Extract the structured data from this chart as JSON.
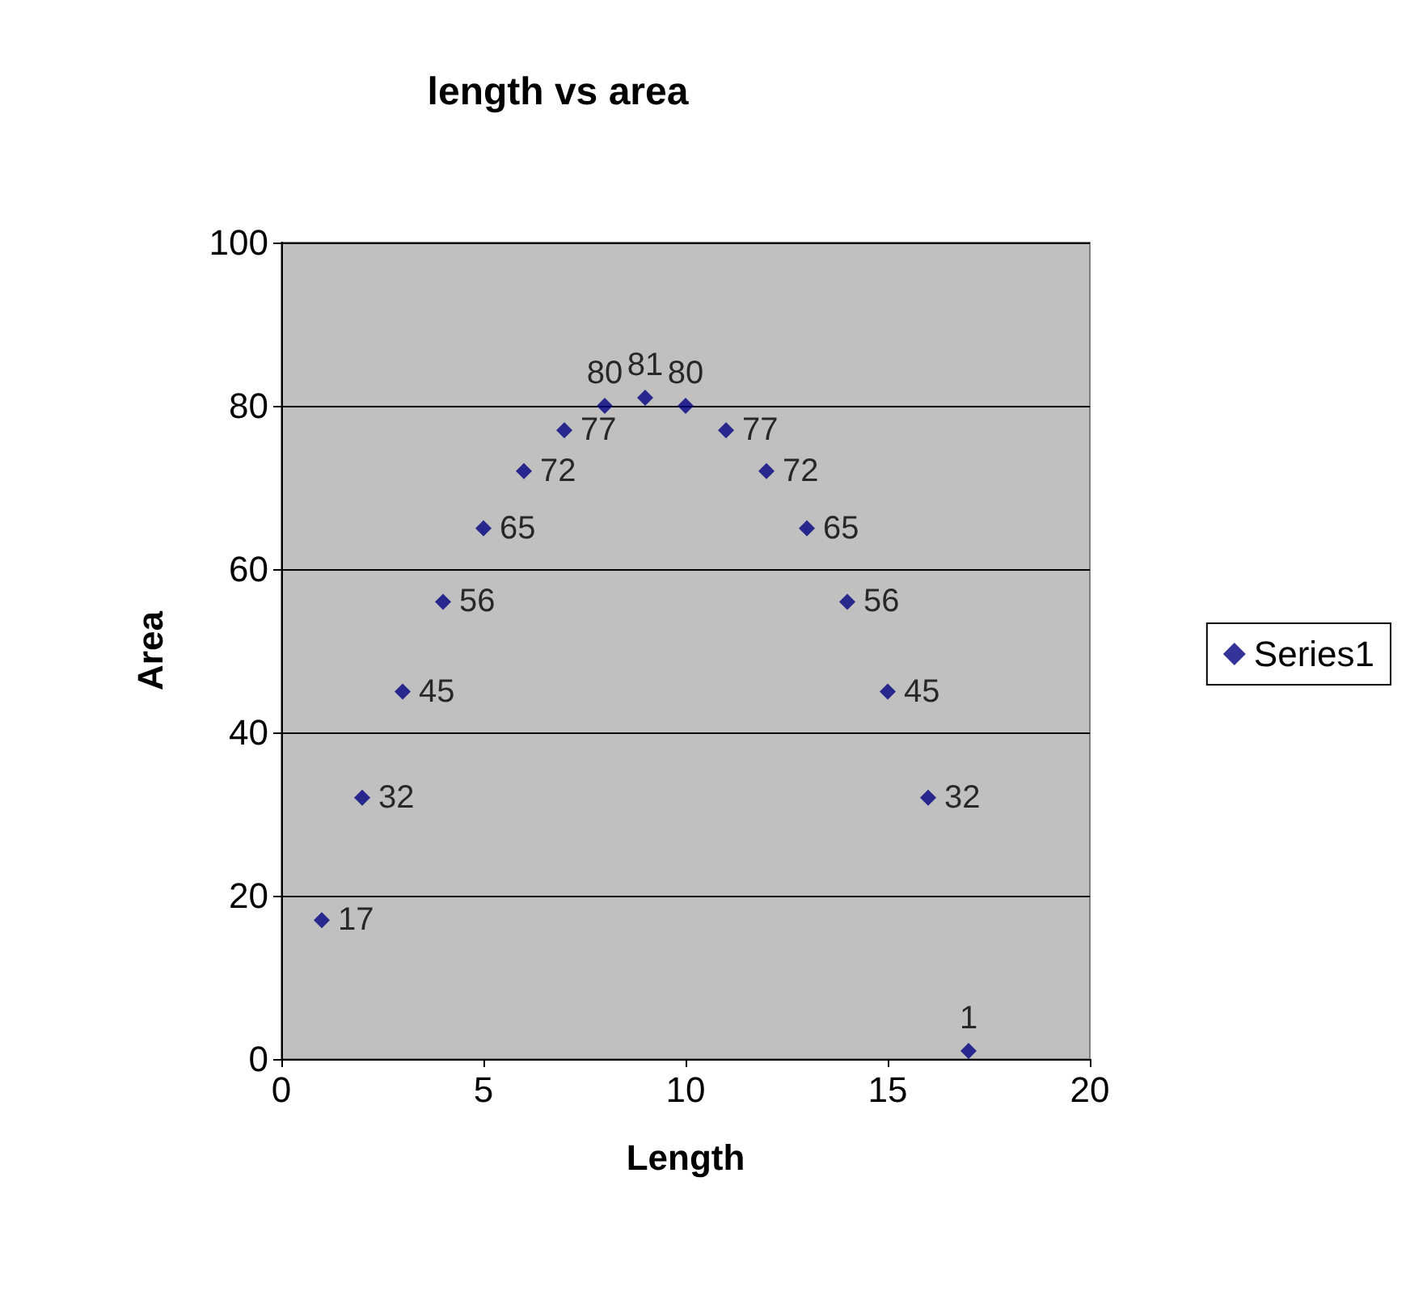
{
  "chart_data": {
    "type": "scatter",
    "title": "length vs area",
    "xlabel": "Length",
    "ylabel": "Area",
    "x": [
      1,
      2,
      3,
      4,
      5,
      6,
      7,
      8,
      9,
      10,
      11,
      12,
      13,
      14,
      15,
      16,
      17
    ],
    "series": [
      {
        "name": "Series1",
        "color": "#000080",
        "values": [
          17,
          32,
          45,
          56,
          65,
          72,
          77,
          80,
          81,
          80,
          77,
          72,
          65,
          56,
          45,
          32,
          1
        ]
      }
    ],
    "xlim": [
      0,
      20
    ],
    "xticks": [
      0,
      5,
      10,
      15,
      20
    ],
    "ylim": [
      0,
      100
    ],
    "yticks": [
      0,
      20,
      40,
      60,
      80,
      100
    ],
    "grid": "y",
    "legend": "right",
    "marker": "diamond",
    "data_labels": true
  }
}
